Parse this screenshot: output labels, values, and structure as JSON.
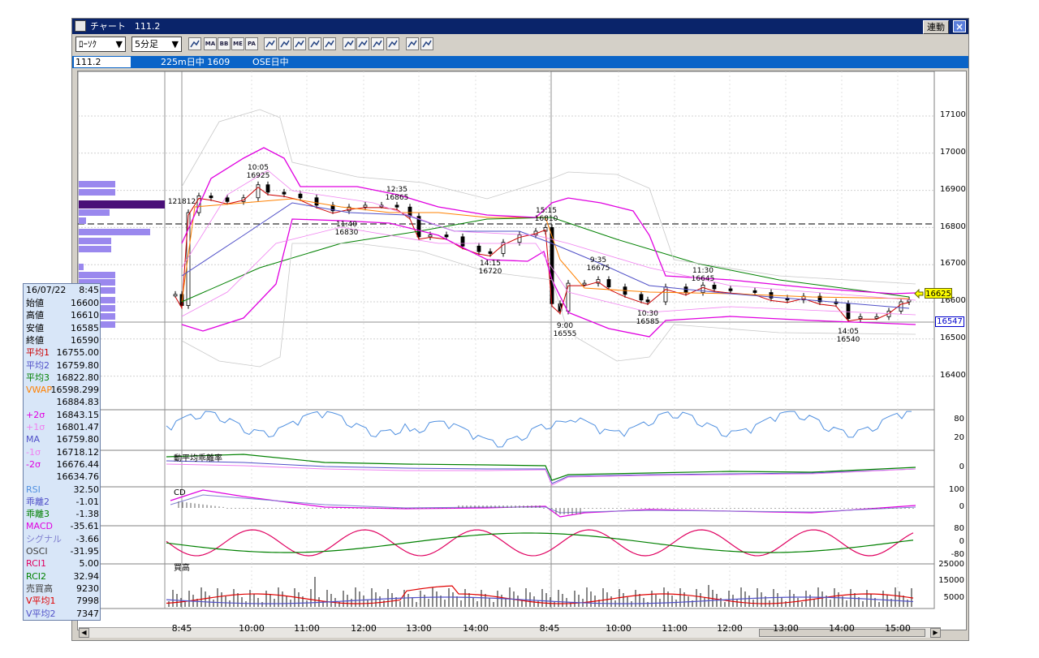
{
  "window": {
    "title": "チャート　111.2",
    "link_button": "連動",
    "close_button": "×"
  },
  "toolbar": {
    "chart_type": "ﾛｰｿｸ",
    "interval": "5分足",
    "icons": [
      "chart-window-icon",
      "ma-icon",
      "bb-icon",
      "me-icon",
      "pa-icon",
      "line-tool-icon",
      "candle-tool-icon",
      "fork-tool-icon",
      "zoom-icon",
      "table-icon",
      "cursor-icon",
      "pen-icon",
      "pointer-icon",
      "eraser-icon",
      "settings-icon",
      "spectrum-icon"
    ],
    "icon_texts": {
      "ma": "MA",
      "bb": "BB",
      "me": "ME",
      "pa": "PA"
    }
  },
  "infobar": {
    "symbol": "111.2",
    "contract": "225m日中 1609",
    "session": "OSE日中"
  },
  "price_axis": [
    "17100",
    "17000",
    "16900",
    "16800",
    "16700",
    "16600",
    "16500",
    "16400"
  ],
  "current_price": "16625",
  "cursor_price": "16547",
  "sub_axes": {
    "rsi": [
      "80",
      "20"
    ],
    "kairi": [
      "0"
    ],
    "macd": [
      "100",
      "0"
    ],
    "rci": [
      "80",
      "0",
      "-80"
    ],
    "volume": [
      "25000",
      "15000",
      "5000"
    ]
  },
  "sub_titles": {
    "kairi": "動平均乖離率",
    "macd": "CD",
    "volume": "買高"
  },
  "time_axis": [
    "8:45",
    "10:00",
    "11:00",
    "12:00",
    "13:00",
    "14:00",
    "8:45",
    "10:00",
    "11:00",
    "12:00",
    "13:00",
    "14:00",
    "15:00"
  ],
  "callouts": [
    {
      "time": "10:05",
      "price": "16925"
    },
    {
      "time": "12:35",
      "price": "16865"
    },
    {
      "time": "11:40",
      "price": "16830"
    },
    {
      "time": "15:15",
      "price": "16810"
    },
    {
      "time": "14:15",
      "price": "16720"
    },
    {
      "time": "9:35",
      "price": "16675"
    },
    {
      "time": "11:30",
      "price": "16645"
    },
    {
      "time": "10:30",
      "price": "16585"
    },
    {
      "time": "9:00",
      "price": "16555"
    },
    {
      "time": "14:05",
      "price": "16540"
    }
  ],
  "first_bar_label": "121812",
  "data_panel": {
    "date": "16/07/22",
    "time": "8:45",
    "rows": [
      {
        "k": "始値",
        "v": "16600",
        "c": "#000000"
      },
      {
        "k": "高値",
        "v": "16610",
        "c": "#000000"
      },
      {
        "k": "安値",
        "v": "16585",
        "c": "#000000"
      },
      {
        "k": "終値",
        "v": "16590",
        "c": "#000000"
      },
      {
        "k": "平均1",
        "v": "16755.00",
        "c": "#cc0000"
      },
      {
        "k": "平均2",
        "v": "16759.80",
        "c": "#5050c8"
      },
      {
        "k": "平均3",
        "v": "16822.80",
        "c": "#008000"
      },
      {
        "k": "VWAP",
        "v": "16598.299",
        "c": "#ff8000"
      },
      {
        "k": "",
        "v": "16884.83",
        "c": "#000000"
      },
      {
        "k": "+2σ",
        "v": "16843.15",
        "c": "#e000e0"
      },
      {
        "k": "+1σ",
        "v": "16801.47",
        "c": "#f080f0"
      },
      {
        "k": "MA",
        "v": "16759.80",
        "c": "#5050c8"
      },
      {
        "k": "-1σ",
        "v": "16718.12",
        "c": "#f080f0"
      },
      {
        "k": "-2σ",
        "v": "16676.44",
        "c": "#e000e0"
      },
      {
        "k": "",
        "v": "16634.76",
        "c": "#000000"
      },
      {
        "k": "RSI",
        "v": "32.50",
        "c": "#5090e0"
      },
      {
        "k": "乖離2",
        "v": "-1.01",
        "c": "#5050c8"
      },
      {
        "k": "乖離3",
        "v": "-1.38",
        "c": "#008000"
      },
      {
        "k": "MACD",
        "v": "-35.61",
        "c": "#e000e0"
      },
      {
        "k": "シグナル",
        "v": "-3.66",
        "c": "#8080d0"
      },
      {
        "k": "OSCI",
        "v": "-31.95",
        "c": "#404040"
      },
      {
        "k": "RCI1",
        "v": "5.00",
        "c": "#e00060"
      },
      {
        "k": "RCI2",
        "v": "32.94",
        "c": "#008000"
      },
      {
        "k": "売買高",
        "v": "9230",
        "c": "#404040"
      },
      {
        "k": "V平均1",
        "v": "7998",
        "c": "#e00000"
      },
      {
        "k": "V平均2",
        "v": "7347",
        "c": "#5050c8"
      }
    ]
  },
  "colors": {
    "candle_up": "#ffffff",
    "candle_down": "#000000",
    "ma1": "#cc0000",
    "ma2": "#5050c8",
    "ma3": "#008000",
    "vwap": "#ff8000",
    "bb2": "#e000e0",
    "bb1": "#f080f0",
    "bb3": "#c8c8c8",
    "rsi": "#5090e0",
    "macd": "#e000e0",
    "volume_hist": "#7a38a8"
  }
}
